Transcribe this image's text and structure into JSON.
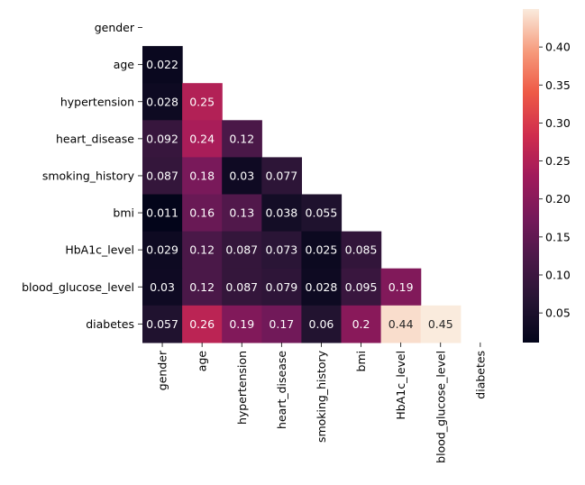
{
  "chart_data": {
    "type": "heatmap",
    "mask": "upper-triangle-including-diagonal",
    "labels": [
      "gender",
      "age",
      "hypertension",
      "heart_disease",
      "smoking_history",
      "bmi",
      "HbA1c_level",
      "blood_glucose_level",
      "diabetes"
    ],
    "cells": [
      {
        "row": 1,
        "col": 0,
        "value": 0.022,
        "text": "0.022"
      },
      {
        "row": 2,
        "col": 0,
        "value": 0.028,
        "text": "0.028"
      },
      {
        "row": 2,
        "col": 1,
        "value": 0.25,
        "text": "0.25"
      },
      {
        "row": 3,
        "col": 0,
        "value": 0.092,
        "text": "0.092"
      },
      {
        "row": 3,
        "col": 1,
        "value": 0.24,
        "text": "0.24"
      },
      {
        "row": 3,
        "col": 2,
        "value": 0.12,
        "text": "0.12"
      },
      {
        "row": 4,
        "col": 0,
        "value": 0.087,
        "text": "0.087"
      },
      {
        "row": 4,
        "col": 1,
        "value": 0.18,
        "text": "0.18"
      },
      {
        "row": 4,
        "col": 2,
        "value": 0.03,
        "text": "0.03"
      },
      {
        "row": 4,
        "col": 3,
        "value": 0.077,
        "text": "0.077"
      },
      {
        "row": 5,
        "col": 0,
        "value": 0.011,
        "text": "0.011"
      },
      {
        "row": 5,
        "col": 1,
        "value": 0.16,
        "text": "0.16"
      },
      {
        "row": 5,
        "col": 2,
        "value": 0.13,
        "text": "0.13"
      },
      {
        "row": 5,
        "col": 3,
        "value": 0.038,
        "text": "0.038"
      },
      {
        "row": 5,
        "col": 4,
        "value": 0.055,
        "text": "0.055"
      },
      {
        "row": 6,
        "col": 0,
        "value": 0.029,
        "text": "0.029"
      },
      {
        "row": 6,
        "col": 1,
        "value": 0.12,
        "text": "0.12"
      },
      {
        "row": 6,
        "col": 2,
        "value": 0.087,
        "text": "0.087"
      },
      {
        "row": 6,
        "col": 3,
        "value": 0.073,
        "text": "0.073"
      },
      {
        "row": 6,
        "col": 4,
        "value": 0.025,
        "text": "0.025"
      },
      {
        "row": 6,
        "col": 5,
        "value": 0.085,
        "text": "0.085"
      },
      {
        "row": 7,
        "col": 0,
        "value": 0.03,
        "text": "0.03"
      },
      {
        "row": 7,
        "col": 1,
        "value": 0.12,
        "text": "0.12"
      },
      {
        "row": 7,
        "col": 2,
        "value": 0.087,
        "text": "0.087"
      },
      {
        "row": 7,
        "col": 3,
        "value": 0.079,
        "text": "0.079"
      },
      {
        "row": 7,
        "col": 4,
        "value": 0.028,
        "text": "0.028"
      },
      {
        "row": 7,
        "col": 5,
        "value": 0.095,
        "text": "0.095"
      },
      {
        "row": 7,
        "col": 6,
        "value": 0.19,
        "text": "0.19"
      },
      {
        "row": 8,
        "col": 0,
        "value": 0.057,
        "text": "0.057"
      },
      {
        "row": 8,
        "col": 1,
        "value": 0.26,
        "text": "0.26"
      },
      {
        "row": 8,
        "col": 2,
        "value": 0.19,
        "text": "0.19"
      },
      {
        "row": 8,
        "col": 3,
        "value": 0.17,
        "text": "0.17"
      },
      {
        "row": 8,
        "col": 4,
        "value": 0.06,
        "text": "0.06"
      },
      {
        "row": 8,
        "col": 5,
        "value": 0.2,
        "text": "0.2"
      },
      {
        "row": 8,
        "col": 6,
        "value": 0.44,
        "text": "0.44"
      },
      {
        "row": 8,
        "col": 7,
        "value": 0.45,
        "text": "0.45"
      }
    ],
    "colorbar": {
      "range": [
        0.011,
        0.45
      ],
      "ticks": [
        0.05,
        0.1,
        0.15,
        0.2,
        0.25,
        0.3,
        0.35,
        0.4
      ],
      "tick_labels": [
        "0.05",
        "0.10",
        "0.15",
        "0.20",
        "0.25",
        "0.30",
        "0.35",
        "0.40"
      ],
      "colormap": "rocket"
    },
    "title": "",
    "xlabel": "",
    "ylabel": ""
  }
}
